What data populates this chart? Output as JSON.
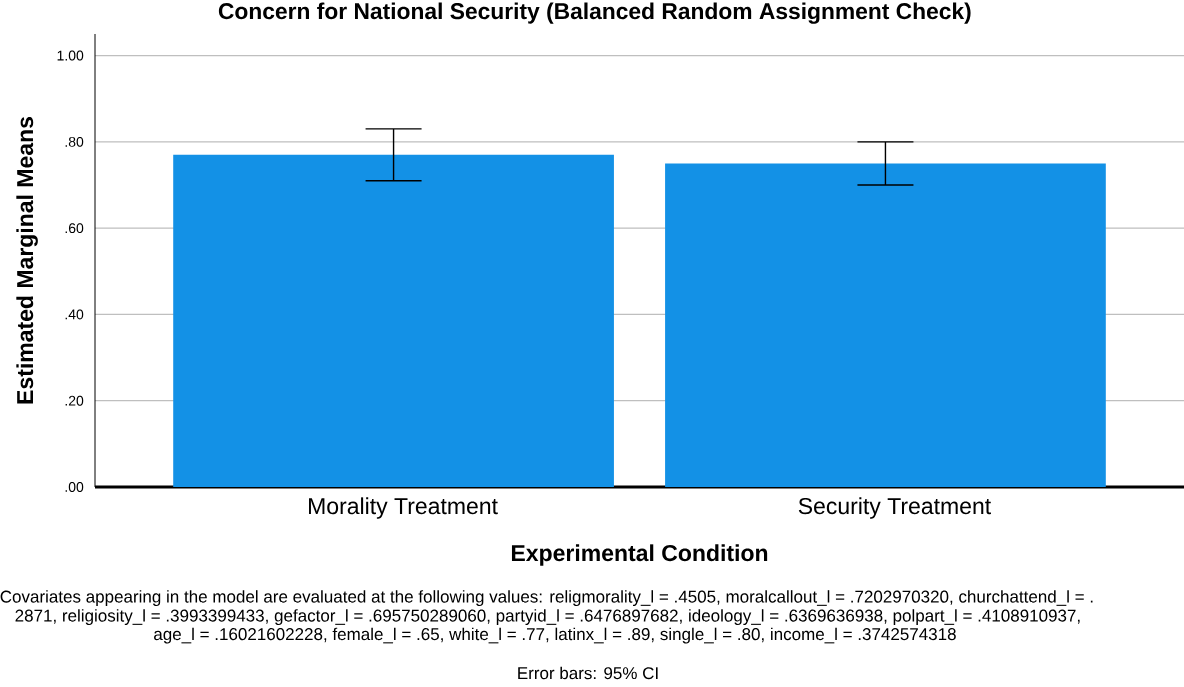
{
  "chart_data": {
    "type": "bar",
    "title": "Concern for National Security (Balanced Random Assignment Check)",
    "xlabel": "Experimental Condition",
    "ylabel": "Estimated Marginal Means",
    "categories": [
      "Morality Treatment",
      "Security Treatment"
    ],
    "values": [
      0.77,
      0.75
    ],
    "color": "#1391e6",
    "errors": [
      [
        0.71,
        0.83
      ],
      [
        0.7,
        0.8
      ]
    ],
    "ylim": [
      0,
      1.05
    ],
    "yticks": [
      {
        "value": 0,
        "label": ".00"
      },
      {
        "value": 0.2,
        "label": ".20"
      },
      {
        "value": 0.4,
        "label": ".40"
      },
      {
        "value": 0.6,
        "label": ".60"
      },
      {
        "value": 0.8,
        "label": ".80"
      },
      {
        "value": 1,
        "label": "1.00"
      }
    ],
    "grid": "y",
    "annotations": [
      "Covariates appearing in the model are evaluated at the following values: religmorality_l = .4505, moralcallout_l = .7202970320, churchattend_l = .",
      "2871, religiosity_l = .3993399433, gefactor_l = .695750289060, partyid_l = .6476897682, ideology_l = .6369636938, polpart_l = .4108910937,",
      "age_l = .16021602228, female_l = .65, white_l = .77, latinx_l = .89, single_l = .80, income_l = .3742574318",
      "Error bars: 95% CI"
    ]
  }
}
